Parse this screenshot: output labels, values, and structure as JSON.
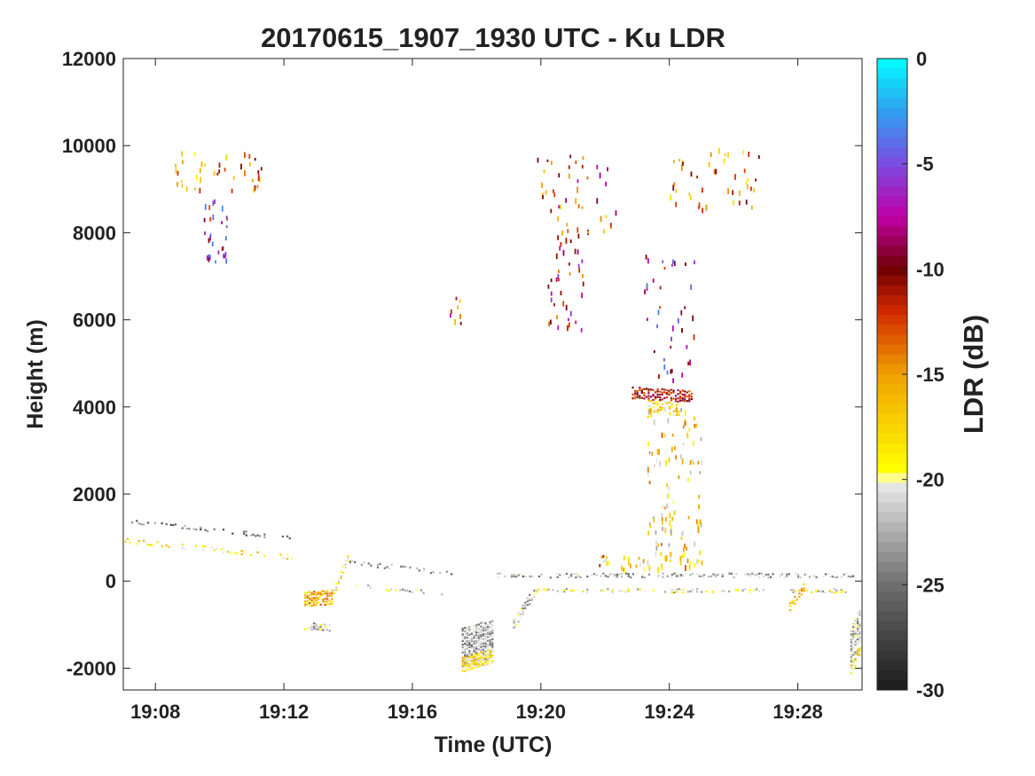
{
  "chart_data": {
    "type": "heatmap",
    "title": "20170615_1907_1930 UTC - Ku LDR",
    "xlabel": "Time (UTC)",
    "ylabel": "Height (m)",
    "x_range": [
      "19:07",
      "19:30"
    ],
    "x_ticks": [
      "19:08",
      "19:12",
      "19:16",
      "19:20",
      "19:24",
      "19:28"
    ],
    "ylim": [
      -2500,
      12000
    ],
    "y_ticks": [
      -2000,
      0,
      2000,
      4000,
      6000,
      8000,
      10000,
      12000
    ],
    "grid": false,
    "colorbar": {
      "label": "LDR (dB)",
      "range": [
        -30,
        0
      ],
      "ticks": [
        0,
        -5,
        -10,
        -15,
        -20,
        -25,
        -30
      ],
      "colormap": [
        {
          "value": -30,
          "color": "#1a1a1a"
        },
        {
          "value": -25,
          "color": "#6e6e6e"
        },
        {
          "value": -20.1,
          "color": "#ececec"
        },
        {
          "value": -20,
          "color": "#ffffa8"
        },
        {
          "value": -19.5,
          "color": "#ffff00"
        },
        {
          "value": -15,
          "color": "#f0a000"
        },
        {
          "value": -12,
          "color": "#d02800"
        },
        {
          "value": -10,
          "color": "#6e0000"
        },
        {
          "value": -7.5,
          "color": "#c000a8"
        },
        {
          "value": -5,
          "color": "#7a4ce0"
        },
        {
          "value": -2.5,
          "color": "#30a0f0"
        },
        {
          "value": 0,
          "color": "#00ffff"
        }
      ]
    },
    "features": [
      {
        "type": "band",
        "t0": 7.0,
        "t1": 12.4,
        "h0": 1400,
        "h1": 1000,
        "thick": 120,
        "ldr": -25,
        "density": 0.3
      },
      {
        "type": "band",
        "t0": 7.0,
        "t1": 12.4,
        "h0": 950,
        "h1": 560,
        "thick": 120,
        "ldr": -18,
        "density": 0.35
      },
      {
        "type": "band",
        "t0": 12.6,
        "t1": 13.5,
        "h0": -400,
        "h1": -350,
        "thick": 350,
        "ldr": -16,
        "density": 0.9
      },
      {
        "type": "band",
        "t0": 12.6,
        "t1": 13.5,
        "h0": -1000,
        "h1": -1050,
        "thick": 180,
        "ldr": -22,
        "density": 0.6
      },
      {
        "type": "band",
        "t0": 13.5,
        "t1": 14.0,
        "h0": -300,
        "h1": 600,
        "thick": 200,
        "ldr": -19,
        "density": 0.8
      },
      {
        "type": "band",
        "t0": 14.0,
        "t1": 17.3,
        "h0": 450,
        "h1": 200,
        "thick": 120,
        "ldr": -23,
        "density": 0.35
      },
      {
        "type": "band",
        "t0": 14.2,
        "t1": 17.0,
        "h0": -100,
        "h1": -250,
        "thick": 100,
        "ldr": -22,
        "density": 0.25
      },
      {
        "type": "band",
        "t0": 17.5,
        "t1": 18.5,
        "h0": -1500,
        "h1": -1300,
        "thick": 900,
        "ldr": -23,
        "density": 0.95
      },
      {
        "type": "band",
        "t0": 17.5,
        "t1": 18.5,
        "h0": -1900,
        "h1": -1700,
        "thick": 350,
        "ldr": -18,
        "density": 0.95
      },
      {
        "type": "band",
        "t0": 19.1,
        "t1": 19.8,
        "h0": -1000,
        "h1": -200,
        "thick": 250,
        "ldr": -22,
        "density": 0.7
      },
      {
        "type": "band",
        "t0": 18.6,
        "t1": 29.8,
        "h0": 150,
        "h1": 150,
        "thick": 110,
        "ldr": -23,
        "density": 0.45
      },
      {
        "type": "band",
        "t0": 19.6,
        "t1": 29.5,
        "h0": -200,
        "h1": -200,
        "thick": 90,
        "ldr": -21,
        "density": 0.3
      },
      {
        "type": "band",
        "t0": 27.7,
        "t1": 28.2,
        "h0": -600,
        "h1": -100,
        "thick": 200,
        "ldr": -17,
        "density": 0.6
      },
      {
        "type": "band",
        "t0": 29.6,
        "t1": 30.0,
        "h0": -1600,
        "h1": -900,
        "thick": 1000,
        "ldr": -22,
        "density": 0.85
      },
      {
        "type": "band",
        "t0": 29.6,
        "t1": 30.0,
        "h0": -2000,
        "h1": -1500,
        "thick": 300,
        "ldr": -18,
        "density": 0.8
      },
      {
        "type": "band",
        "t0": 22.8,
        "t1": 24.7,
        "h0": 4350,
        "h1": 4250,
        "thick": 280,
        "ldr": -11,
        "density": 0.75
      },
      {
        "type": "band",
        "t0": 23.3,
        "t1": 24.3,
        "h0": 4050,
        "h1": 3950,
        "thick": 300,
        "ldr": -18,
        "density": 0.6
      },
      {
        "type": "scatter",
        "t0": 8.6,
        "t1": 11.3,
        "h0": 9000,
        "h1": 9900,
        "n": 40,
        "ldr": -14
      },
      {
        "type": "scatter",
        "t0": 9.5,
        "t1": 10.3,
        "h0": 7300,
        "h1": 8800,
        "n": 30,
        "ldr": -8
      },
      {
        "type": "scatter",
        "t0": 19.8,
        "t1": 22.5,
        "h0": 8000,
        "h1": 9900,
        "n": 45,
        "ldr": -12
      },
      {
        "type": "scatter",
        "t0": 20.2,
        "t1": 21.3,
        "h0": 5800,
        "h1": 8000,
        "n": 40,
        "ldr": -10
      },
      {
        "type": "scatter",
        "t0": 24.0,
        "t1": 26.8,
        "h0": 8500,
        "h1": 9950,
        "n": 45,
        "ldr": -14
      },
      {
        "type": "scatter",
        "t0": 23.2,
        "t1": 24.8,
        "h0": 4500,
        "h1": 7500,
        "n": 40,
        "ldr": -8
      },
      {
        "type": "scatter",
        "t0": 23.3,
        "t1": 25.0,
        "h0": 300,
        "h1": 4000,
        "n": 120,
        "ldr": -18
      },
      {
        "type": "scatter",
        "t0": 17.0,
        "t1": 17.5,
        "h0": 5900,
        "h1": 6600,
        "n": 8,
        "ldr": -12
      },
      {
        "type": "scatter",
        "t0": 21.8,
        "t1": 24.6,
        "h0": 300,
        "h1": 600,
        "n": 30,
        "ldr": -16
      }
    ]
  }
}
